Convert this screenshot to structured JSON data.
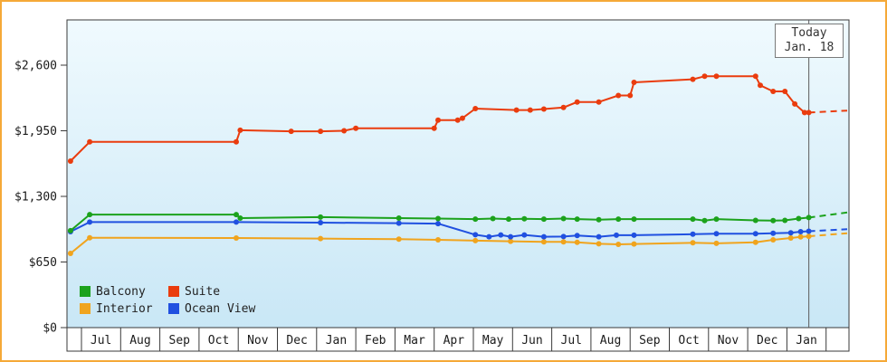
{
  "colors": {
    "background_top": "#f0fafe",
    "background_bottom": "#c9e7f6",
    "border": "#f5a938",
    "axis": "#3a3a3a",
    "today_line": "#5a5a5a"
  },
  "legend": {
    "items": [
      {
        "label": "Balcony",
        "color": "#1ca21c"
      },
      {
        "label": "Suite",
        "color": "#ea3c0e"
      },
      {
        "label": "Interior",
        "color": "#f0a41e"
      },
      {
        "label": "Ocean View",
        "color": "#2050e0"
      }
    ]
  },
  "chart_data": {
    "type": "line",
    "title": "",
    "y_axis": {
      "ticks": [
        {
          "value": 0,
          "label": "$0"
        },
        {
          "value": 650,
          "label": "$650"
        },
        {
          "value": 1300,
          "label": "$1,300"
        },
        {
          "value": 1950,
          "label": "$1,950"
        },
        {
          "value": 2600,
          "label": "$2,600"
        }
      ],
      "max": 3050
    },
    "x_axis": {
      "months": [
        "Jul",
        "Aug",
        "Sep",
        "Oct",
        "Nov",
        "Dec",
        "Jan",
        "Feb",
        "Mar",
        "Apr",
        "May",
        "Jun",
        "Jul",
        "Aug",
        "Sep",
        "Oct",
        "Nov",
        "Dec",
        "Jan"
      ]
    },
    "today_marker": {
      "label": "Today",
      "date": "Jan. 18",
      "month_position": 18.56
    },
    "legend_position": "bottom-left",
    "series": [
      {
        "name": "Balcony",
        "color": "#1ca21c",
        "projection_value": 1140,
        "points": [
          [
            -0.28,
            960
          ],
          [
            0.21,
            1120
          ],
          [
            3.95,
            1120
          ],
          [
            4.05,
            1085
          ],
          [
            6.1,
            1095
          ],
          [
            8.1,
            1085
          ],
          [
            9.1,
            1080
          ],
          [
            10.05,
            1075
          ],
          [
            10.5,
            1080
          ],
          [
            10.9,
            1075
          ],
          [
            11.3,
            1078
          ],
          [
            11.8,
            1075
          ],
          [
            12.3,
            1080
          ],
          [
            12.65,
            1075
          ],
          [
            13.2,
            1070
          ],
          [
            13.7,
            1075
          ],
          [
            14.1,
            1075
          ],
          [
            15.6,
            1075
          ],
          [
            15.9,
            1060
          ],
          [
            16.2,
            1075
          ],
          [
            17.2,
            1062
          ],
          [
            17.65,
            1060
          ],
          [
            17.95,
            1062
          ],
          [
            18.3,
            1080
          ],
          [
            18.56,
            1090
          ]
        ]
      },
      {
        "name": "Suite",
        "color": "#ea3c0e",
        "projection_value": 2150,
        "points": [
          [
            -0.28,
            1650
          ],
          [
            0.21,
            1840
          ],
          [
            3.95,
            1840
          ],
          [
            4.05,
            1955
          ],
          [
            5.35,
            1945
          ],
          [
            6.1,
            1945
          ],
          [
            6.7,
            1950
          ],
          [
            7.0,
            1975
          ],
          [
            9.0,
            1975
          ],
          [
            9.1,
            2055
          ],
          [
            9.6,
            2055
          ],
          [
            9.72,
            2075
          ],
          [
            10.05,
            2170
          ],
          [
            11.1,
            2155
          ],
          [
            11.45,
            2155
          ],
          [
            11.8,
            2165
          ],
          [
            12.3,
            2180
          ],
          [
            12.65,
            2235
          ],
          [
            13.2,
            2235
          ],
          [
            13.7,
            2300
          ],
          [
            14.0,
            2300
          ],
          [
            14.1,
            2430
          ],
          [
            15.6,
            2460
          ],
          [
            15.9,
            2490
          ],
          [
            16.2,
            2490
          ],
          [
            17.2,
            2490
          ],
          [
            17.32,
            2400
          ],
          [
            17.65,
            2340
          ],
          [
            17.95,
            2340
          ],
          [
            18.2,
            2215
          ],
          [
            18.45,
            2130
          ],
          [
            18.56,
            2130
          ]
        ]
      },
      {
        "name": "Interior",
        "color": "#f0a41e",
        "projection_value": 935,
        "points": [
          [
            -0.28,
            735
          ],
          [
            0.21,
            890
          ],
          [
            3.95,
            888
          ],
          [
            6.1,
            882
          ],
          [
            8.1,
            876
          ],
          [
            9.1,
            870
          ],
          [
            10.05,
            862
          ],
          [
            10.95,
            855
          ],
          [
            11.8,
            850
          ],
          [
            12.3,
            850
          ],
          [
            12.65,
            845
          ],
          [
            13.2,
            830
          ],
          [
            13.7,
            825
          ],
          [
            14.1,
            828
          ],
          [
            15.6,
            840
          ],
          [
            16.2,
            835
          ],
          [
            17.2,
            845
          ],
          [
            17.65,
            870
          ],
          [
            18.1,
            888
          ],
          [
            18.35,
            898
          ],
          [
            18.56,
            905
          ]
        ]
      },
      {
        "name": "Ocean View",
        "color": "#2050e0",
        "projection_value": 975,
        "points": [
          [
            -0.28,
            950
          ],
          [
            0.21,
            1045
          ],
          [
            3.95,
            1045
          ],
          [
            6.1,
            1040
          ],
          [
            8.1,
            1035
          ],
          [
            9.1,
            1030
          ],
          [
            10.05,
            920
          ],
          [
            10.4,
            900
          ],
          [
            10.7,
            918
          ],
          [
            10.95,
            900
          ],
          [
            11.3,
            918
          ],
          [
            11.8,
            900
          ],
          [
            12.3,
            902
          ],
          [
            12.65,
            912
          ],
          [
            13.2,
            900
          ],
          [
            13.65,
            915
          ],
          [
            14.1,
            915
          ],
          [
            15.6,
            925
          ],
          [
            16.2,
            930
          ],
          [
            17.2,
            930
          ],
          [
            17.65,
            935
          ],
          [
            18.1,
            940
          ],
          [
            18.35,
            950
          ],
          [
            18.56,
            955
          ]
        ]
      }
    ]
  }
}
